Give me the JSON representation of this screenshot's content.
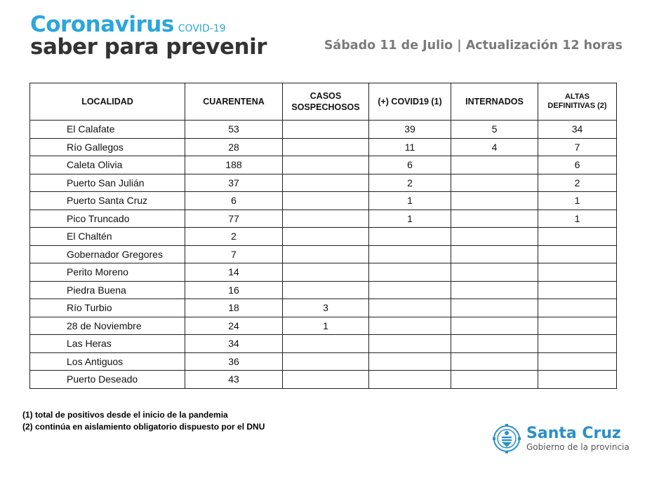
{
  "header": {
    "brand_title": "Coronavirus",
    "brand_tag": "COVID-19",
    "brand_subtitle": "saber para prevenir",
    "date_line": "Sábado 11 de Julio | Actualización 12 horas"
  },
  "table": {
    "columns": [
      "LOCALIDAD",
      "CUARENTENA",
      "CASOS SOSPECHOSOS",
      "(+) COVID19 (1)",
      "INTERNADOS",
      "ALTAS DEFINITIVAS (2)"
    ],
    "rows": [
      [
        "El Calafate",
        "53",
        "",
        "39",
        "5",
        "34"
      ],
      [
        "Río Gallegos",
        "28",
        "",
        "11",
        "4",
        "7"
      ],
      [
        "Caleta Olivia",
        "188",
        "",
        "6",
        "",
        "6"
      ],
      [
        "Puerto San Julián",
        "37",
        "",
        "2",
        "",
        "2"
      ],
      [
        "Puerto Santa Cruz",
        "6",
        "",
        "1",
        "",
        "1"
      ],
      [
        "Pico Truncado",
        "77",
        "",
        "1",
        "",
        "1"
      ],
      [
        "El Chaltén",
        "2",
        "",
        "",
        "",
        ""
      ],
      [
        "Gobernador Gregores",
        "7",
        "",
        "",
        "",
        ""
      ],
      [
        "Perito Moreno",
        "14",
        "",
        "",
        "",
        ""
      ],
      [
        "Piedra Buena",
        "16",
        "",
        "",
        "",
        ""
      ],
      [
        "Río Turbio",
        "18",
        "3",
        "",
        "",
        ""
      ],
      [
        "28 de Noviembre",
        "24",
        "1",
        "",
        "",
        ""
      ],
      [
        "Las Heras",
        "34",
        "",
        "",
        "",
        ""
      ],
      [
        "Los Antiguos",
        "36",
        "",
        "",
        "",
        ""
      ],
      [
        "Puerto Deseado",
        "43",
        "",
        "",
        "",
        ""
      ]
    ]
  },
  "footnotes": [
    "(1) total de positivos desde el inicio de la pandemia",
    "(2) continúa en aislamiento obligatorio dispuesto por el DNU"
  ],
  "government": {
    "name": "Santa Cruz",
    "subtitle": "Gobierno de la provincia",
    "emblem_icon": "provincial-coat-of-arms-icon",
    "color": "#2a8fc8"
  }
}
